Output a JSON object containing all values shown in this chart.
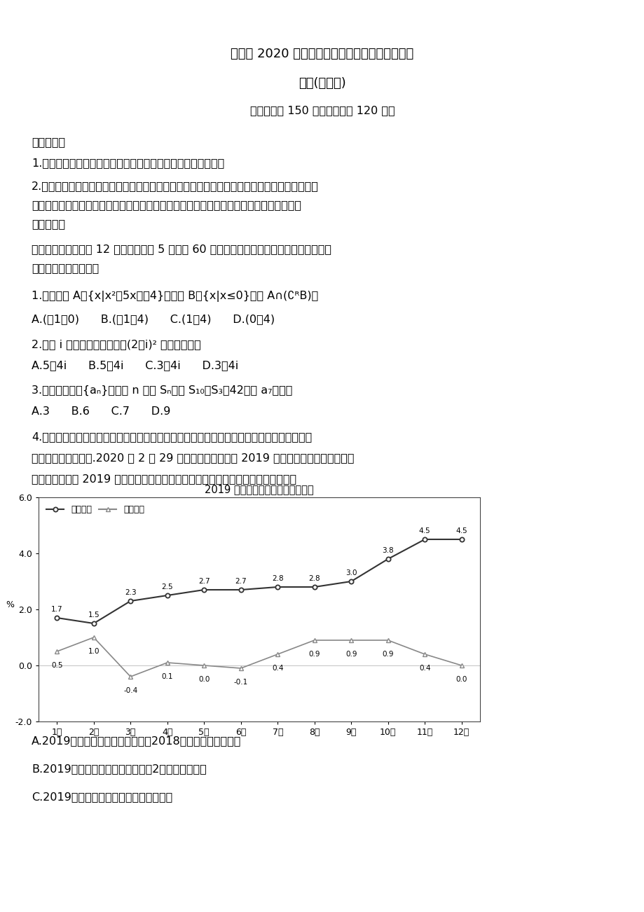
{
  "title_main": "蚌埠市 2020 届高三年级第三次教学质量检查考试",
  "title_sub": "数学(理工类)",
  "title_sub2": "本试卷满分 150 分，考试时间 120 分钟",
  "note_header": "注意事项：",
  "note1": "1.答卷前，考生务必将自己的姓名、准考证号填写在答题卡上。",
  "note2a": "2.回答选择题时，选出每小题答案后，用铅笔把答题卡上对应题目的答案标号涂黑。如需改动，",
  "note2b": "用橡皮擦干净后，再选涂其它答案标号。回答非选择题时，将答案写在答题卡上。写在本试",
  "note2c": "卷上无效。",
  "section1": "一、选择题：本题共 12 小题，每小题 5 分，共 60 分。在每小题给出的四个选项中，只有一",
  "section2": "项是符合题目要求的。",
  "q1": "1.已知集合 A＝{x|x²－5x＜－4}，集合 B＝{x|x≤0}，则 A∩(∁ᴿB)＝",
  "q1_opts": "A.(－1，0)      B.(－1，4)      C.(1，4)      D.(0，4)",
  "q2": "2.已知 i 为虚数单位，则复数(2－i)² 的共轭复数为",
  "q2_opts": "A.5－4i      B.5＋4i      C.3－4i      D.3＋4i",
  "q3": "3.已知等差数列{aₙ}中，前 n 项和 Sₙ满足 S₁₀－S₃＝42，则 a₇的值是",
  "q3_opts": "A.3      B.6      C.7      D.9",
  "q4a": "4.在统计学中，同比增长率一般是指和去年同期相比较的增长率，环比增长率一般是指和前一",
  "q4b": "时期相比较的增长率.2020 年 2 月 29 日人民网发布了我国 2019 年国民经济和社会发展统计",
  "q4c": "公报图表，根据 2019 年居民消费价格月度涨跌幅度统计折线图，下列说法正确的是",
  "chart_title": "2019 年居民消费价格月度涨跌幅度",
  "chart_ylabel": "%",
  "months": [
    "1月",
    "2月",
    "3月",
    "4月",
    "5月",
    "6月",
    "7月",
    "8月",
    "9月",
    "10月",
    "11月",
    "12月"
  ],
  "yoy_data": [
    1.7,
    1.5,
    2.3,
    2.5,
    2.7,
    2.7,
    2.8,
    2.8,
    3.0,
    3.8,
    4.5,
    4.5
  ],
  "mom_data": [
    0.5,
    1.0,
    -0.4,
    0.1,
    0.0,
    -0.1,
    0.4,
    0.9,
    0.9,
    0.9,
    0.4,
    0.0
  ],
  "ylim_min": -2.0,
  "ylim_max": 6.0,
  "yticks": [
    -2.0,
    0.0,
    2.0,
    4.0,
    6.0
  ],
  "legend_yoy": "月度同比",
  "legend_mom": "月度环比",
  "ans_a": "A.2019年我国居民每月消费价格与2018年同期相比有涨有跌",
  "ans_b": "B.2019年我国居民每月消费价格中2月消费价格最高",
  "ans_c": "C.2019年我国居民每月消费价格逐月递增",
  "bg_color": "#ffffff",
  "chart_line_color_yoy": "#333333",
  "chart_line_color_mom": "#888888"
}
